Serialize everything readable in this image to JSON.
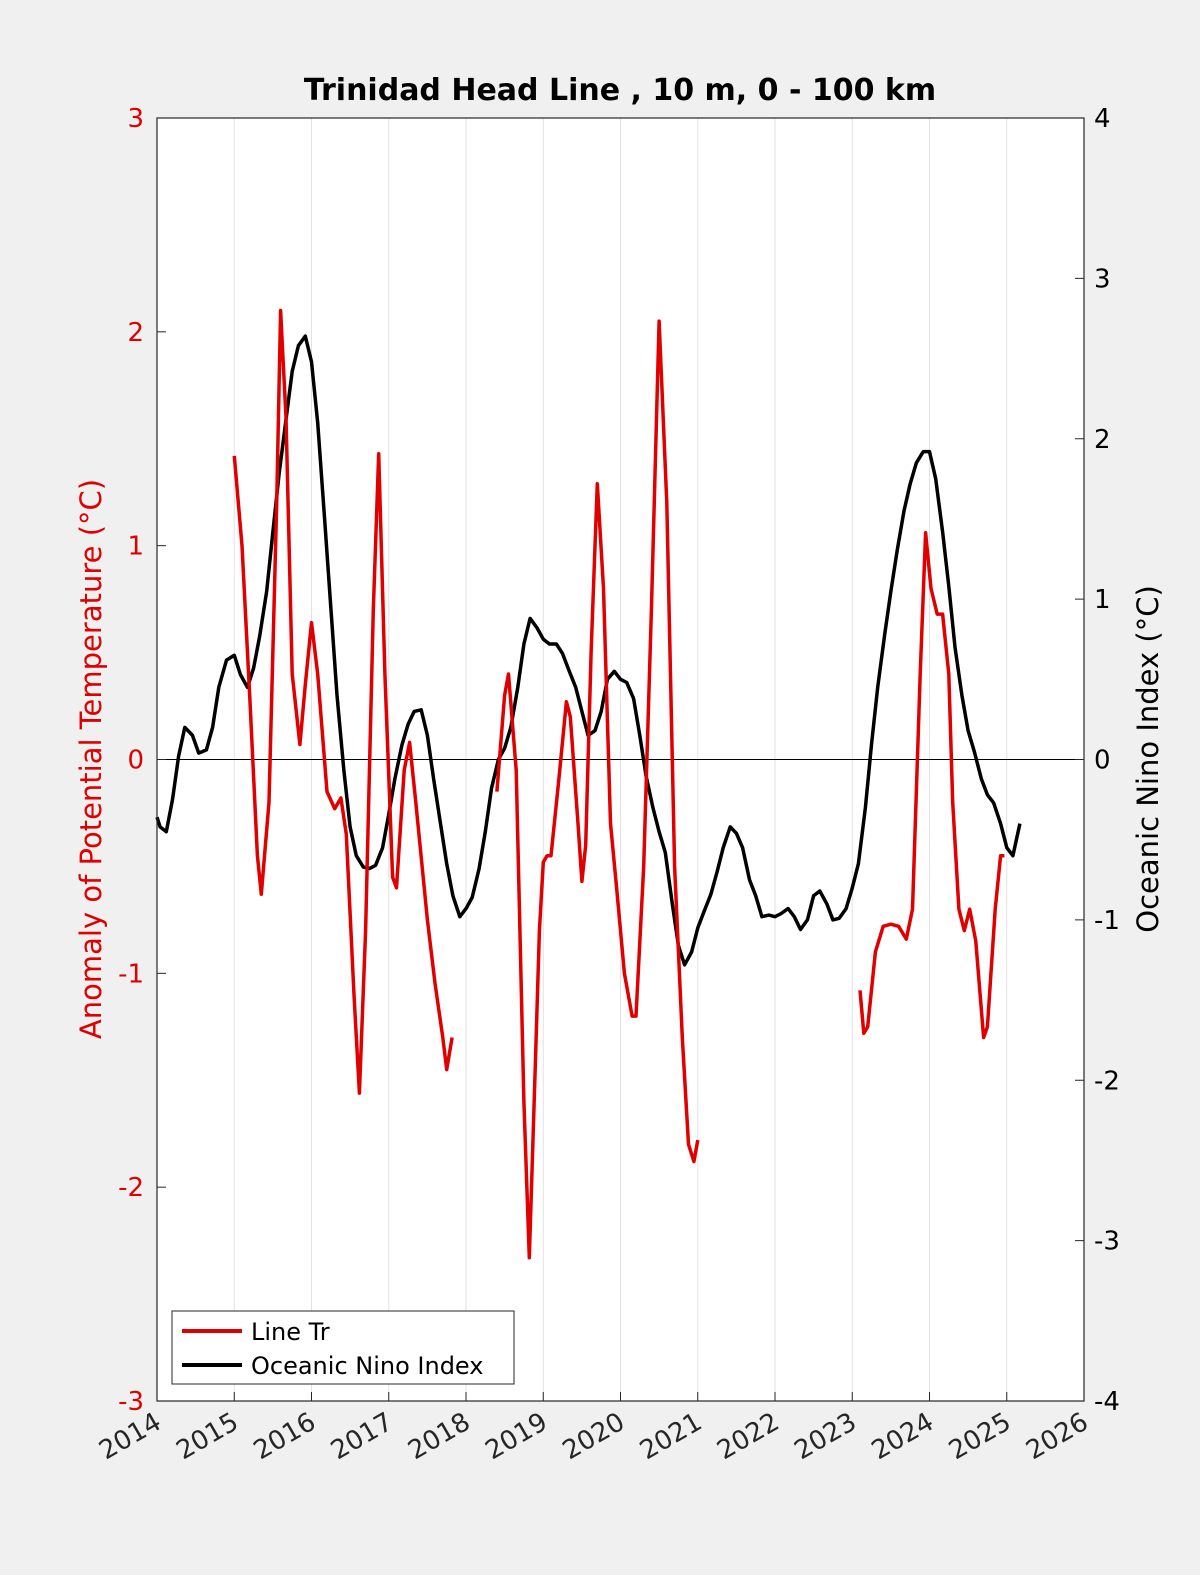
{
  "chart_data": {
    "type": "line",
    "title": "Trinidad Head Line , 10 m, 0 - 100 km",
    "xlabel": "",
    "ylabel_left": "Anomaly of Potential Temperature (°C)",
    "ylabel_right": "Oceanic Nino Index (°C)",
    "xlim": [
      2014,
      2026
    ],
    "ylim_left": [
      -3,
      3
    ],
    "ylim_right": [
      -4,
      4
    ],
    "xticks": [
      "2014",
      "2015",
      "2016",
      "2017",
      "2018",
      "2019",
      "2020",
      "2021",
      "2022",
      "2023",
      "2024",
      "2025",
      "2026"
    ],
    "yticks_left": [
      "3",
      "2",
      "1",
      "0",
      "-1",
      "-2",
      "-3"
    ],
    "yticks_right": [
      "4",
      "3",
      "2",
      "1",
      "0",
      "-1",
      "-2",
      "-3",
      "-4"
    ],
    "grid": "vertical",
    "legend_position": "bottom-left",
    "colors": {
      "line_tr": "#e00000",
      "oni": "#000000",
      "left_axis": "#e00000",
      "right_axis": "#000000"
    },
    "series": [
      {
        "name": "Line Tr",
        "axis": "left",
        "segments": [
          [
            [
              2015.0,
              1.42
            ],
            [
              2015.1,
              1.0
            ],
            [
              2015.2,
              0.3
            ],
            [
              2015.3,
              -0.45
            ],
            [
              2015.35,
              -0.63
            ],
            [
              2015.45,
              -0.2
            ],
            [
              2015.55,
              1.2
            ],
            [
              2015.6,
              2.1
            ],
            [
              2015.67,
              1.6
            ],
            [
              2015.75,
              0.4
            ],
            [
              2015.85,
              0.07
            ],
            [
              2015.92,
              0.35
            ],
            [
              2016.0,
              0.64
            ],
            [
              2016.08,
              0.4
            ],
            [
              2016.2,
              -0.15
            ],
            [
              2016.3,
              -0.23
            ],
            [
              2016.38,
              -0.18
            ],
            [
              2016.45,
              -0.35
            ],
            [
              2016.55,
              -1.1
            ],
            [
              2016.62,
              -1.56
            ],
            [
              2016.7,
              -0.8
            ],
            [
              2016.8,
              0.7
            ],
            [
              2016.87,
              1.43
            ],
            [
              2016.95,
              0.4
            ],
            [
              2017.05,
              -0.55
            ],
            [
              2017.1,
              -0.6
            ],
            [
              2017.2,
              -0.05
            ],
            [
              2017.27,
              0.08
            ],
            [
              2017.35,
              -0.2
            ],
            [
              2017.5,
              -0.75
            ],
            [
              2017.6,
              -1.05
            ],
            [
              2017.7,
              -1.3
            ],
            [
              2017.75,
              -1.45
            ],
            [
              2017.82,
              -1.3
            ]
          ],
          [
            [
              2018.4,
              -0.15
            ],
            [
              2018.5,
              0.3
            ],
            [
              2018.55,
              0.4
            ],
            [
              2018.65,
              -0.05
            ],
            [
              2018.75,
              -1.6
            ],
            [
              2018.82,
              -2.33
            ],
            [
              2018.9,
              -1.4
            ],
            [
              2018.95,
              -0.8
            ],
            [
              2019.0,
              -0.48
            ],
            [
              2019.05,
              -0.45
            ],
            [
              2019.1,
              -0.45
            ],
            [
              2019.2,
              -0.1
            ],
            [
              2019.3,
              0.27
            ],
            [
              2019.35,
              0.2
            ],
            [
              2019.45,
              -0.3
            ],
            [
              2019.5,
              -0.57
            ],
            [
              2019.55,
              -0.4
            ],
            [
              2019.62,
              0.5
            ],
            [
              2019.7,
              1.29
            ],
            [
              2019.78,
              0.8
            ],
            [
              2019.87,
              -0.3
            ],
            [
              2019.95,
              -0.6
            ],
            [
              2020.05,
              -1.0
            ],
            [
              2020.15,
              -1.2
            ],
            [
              2020.2,
              -1.2
            ],
            [
              2020.3,
              -0.5
            ],
            [
              2020.4,
              0.7
            ],
            [
              2020.5,
              2.05
            ],
            [
              2020.6,
              1.2
            ],
            [
              2020.7,
              -0.5
            ],
            [
              2020.8,
              -1.3
            ],
            [
              2020.88,
              -1.8
            ],
            [
              2020.95,
              -1.88
            ],
            [
              2021.0,
              -1.78
            ]
          ],
          [
            [
              2023.1,
              -1.08
            ],
            [
              2023.15,
              -1.28
            ],
            [
              2023.2,
              -1.25
            ],
            [
              2023.3,
              -0.9
            ],
            [
              2023.4,
              -0.78
            ],
            [
              2023.5,
              -0.77
            ],
            [
              2023.6,
              -0.78
            ],
            [
              2023.7,
              -0.84
            ],
            [
              2023.78,
              -0.7
            ],
            [
              2023.88,
              0.4
            ],
            [
              2023.95,
              1.06
            ],
            [
              2024.02,
              0.8
            ],
            [
              2024.1,
              0.68
            ],
            [
              2024.17,
              0.68
            ],
            [
              2024.25,
              0.4
            ],
            [
              2024.3,
              -0.2
            ],
            [
              2024.38,
              -0.7
            ],
            [
              2024.45,
              -0.8
            ],
            [
              2024.52,
              -0.7
            ],
            [
              2024.6,
              -0.85
            ],
            [
              2024.7,
              -1.3
            ],
            [
              2024.75,
              -1.25
            ],
            [
              2024.85,
              -0.7
            ],
            [
              2024.92,
              -0.45
            ],
            [
              2024.97,
              -0.45
            ]
          ]
        ]
      },
      {
        "name": "Oceanic Nino Index",
        "axis": "right",
        "points": [
          [
            2014.0,
            -0.36
          ],
          [
            2014.04,
            -0.42
          ],
          [
            2014.12,
            -0.45
          ],
          [
            2014.2,
            -0.25
          ],
          [
            2014.28,
            0.02
          ],
          [
            2014.36,
            0.2
          ],
          [
            2014.46,
            0.15
          ],
          [
            2014.54,
            0.04
          ],
          [
            2014.64,
            0.06
          ],
          [
            2014.72,
            0.2
          ],
          [
            2014.8,
            0.45
          ],
          [
            2014.9,
            0.62
          ],
          [
            2015.0,
            0.65
          ],
          [
            2015.08,
            0.53
          ],
          [
            2015.17,
            0.45
          ],
          [
            2015.25,
            0.57
          ],
          [
            2015.33,
            0.77
          ],
          [
            2015.42,
            1.05
          ],
          [
            2015.5,
            1.42
          ],
          [
            2015.58,
            1.78
          ],
          [
            2015.67,
            2.12
          ],
          [
            2015.75,
            2.42
          ],
          [
            2015.83,
            2.58
          ],
          [
            2015.92,
            2.64
          ],
          [
            2016.0,
            2.48
          ],
          [
            2016.08,
            2.1
          ],
          [
            2016.17,
            1.5
          ],
          [
            2016.25,
            0.95
          ],
          [
            2016.33,
            0.4
          ],
          [
            2016.42,
            -0.07
          ],
          [
            2016.5,
            -0.42
          ],
          [
            2016.58,
            -0.6
          ],
          [
            2016.67,
            -0.67
          ],
          [
            2016.75,
            -0.68
          ],
          [
            2016.83,
            -0.66
          ],
          [
            2016.92,
            -0.55
          ],
          [
            2017.0,
            -0.34
          ],
          [
            2017.08,
            -0.12
          ],
          [
            2017.17,
            0.09
          ],
          [
            2017.25,
            0.22
          ],
          [
            2017.33,
            0.3
          ],
          [
            2017.42,
            0.31
          ],
          [
            2017.5,
            0.15
          ],
          [
            2017.58,
            -0.12
          ],
          [
            2017.67,
            -0.4
          ],
          [
            2017.75,
            -0.65
          ],
          [
            2017.83,
            -0.85
          ],
          [
            2017.92,
            -0.98
          ],
          [
            2018.0,
            -0.93
          ],
          [
            2018.08,
            -0.86
          ],
          [
            2018.17,
            -0.68
          ],
          [
            2018.25,
            -0.45
          ],
          [
            2018.33,
            -0.18
          ],
          [
            2018.42,
            0.0
          ],
          [
            2018.5,
            0.07
          ],
          [
            2018.58,
            0.2
          ],
          [
            2018.67,
            0.45
          ],
          [
            2018.75,
            0.72
          ],
          [
            2018.83,
            0.88
          ],
          [
            2018.92,
            0.82
          ],
          [
            2019.0,
            0.75
          ],
          [
            2019.08,
            0.72
          ],
          [
            2019.17,
            0.72
          ],
          [
            2019.25,
            0.66
          ],
          [
            2019.33,
            0.56
          ],
          [
            2019.42,
            0.45
          ],
          [
            2019.5,
            0.3
          ],
          [
            2019.58,
            0.15
          ],
          [
            2019.67,
            0.18
          ],
          [
            2019.75,
            0.3
          ],
          [
            2019.83,
            0.5
          ],
          [
            2019.92,
            0.55
          ],
          [
            2020.0,
            0.5
          ],
          [
            2020.08,
            0.48
          ],
          [
            2020.17,
            0.38
          ],
          [
            2020.25,
            0.15
          ],
          [
            2020.33,
            -0.1
          ],
          [
            2020.42,
            -0.3
          ],
          [
            2020.5,
            -0.45
          ],
          [
            2020.58,
            -0.58
          ],
          [
            2020.67,
            -0.9
          ],
          [
            2020.75,
            -1.16
          ],
          [
            2020.83,
            -1.28
          ],
          [
            2020.92,
            -1.2
          ],
          [
            2021.0,
            -1.05
          ],
          [
            2021.08,
            -0.95
          ],
          [
            2021.17,
            -0.84
          ],
          [
            2021.25,
            -0.7
          ],
          [
            2021.33,
            -0.55
          ],
          [
            2021.42,
            -0.42
          ],
          [
            2021.5,
            -0.46
          ],
          [
            2021.58,
            -0.55
          ],
          [
            2021.67,
            -0.75
          ],
          [
            2021.75,
            -0.85
          ],
          [
            2021.83,
            -0.98
          ],
          [
            2021.92,
            -0.97
          ],
          [
            2022.0,
            -0.98
          ],
          [
            2022.08,
            -0.96
          ],
          [
            2022.17,
            -0.93
          ],
          [
            2022.25,
            -0.98
          ],
          [
            2022.33,
            -1.06
          ],
          [
            2022.42,
            -1.0
          ],
          [
            2022.5,
            -0.85
          ],
          [
            2022.58,
            -0.82
          ],
          [
            2022.67,
            -0.9
          ],
          [
            2022.75,
            -1.0
          ],
          [
            2022.83,
            -0.99
          ],
          [
            2022.92,
            -0.93
          ],
          [
            2023.0,
            -0.8
          ],
          [
            2023.08,
            -0.65
          ],
          [
            2023.17,
            -0.3
          ],
          [
            2023.25,
            0.1
          ],
          [
            2023.33,
            0.45
          ],
          [
            2023.42,
            0.78
          ],
          [
            2023.5,
            1.05
          ],
          [
            2023.58,
            1.3
          ],
          [
            2023.67,
            1.55
          ],
          [
            2023.75,
            1.72
          ],
          [
            2023.83,
            1.85
          ],
          [
            2023.92,
            1.92
          ],
          [
            2024.0,
            1.92
          ],
          [
            2024.08,
            1.75
          ],
          [
            2024.17,
            1.42
          ],
          [
            2024.25,
            1.08
          ],
          [
            2024.33,
            0.7
          ],
          [
            2024.42,
            0.4
          ],
          [
            2024.5,
            0.18
          ],
          [
            2024.58,
            0.05
          ],
          [
            2024.67,
            -0.12
          ],
          [
            2024.75,
            -0.22
          ],
          [
            2024.83,
            -0.27
          ],
          [
            2024.92,
            -0.4
          ],
          [
            2025.0,
            -0.55
          ],
          [
            2025.08,
            -0.6
          ],
          [
            2025.17,
            -0.4
          ]
        ]
      }
    ]
  }
}
